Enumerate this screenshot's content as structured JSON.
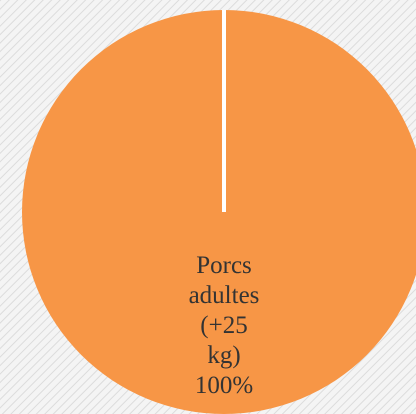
{
  "chart_data": {
    "type": "pie",
    "categories": [
      "Porcs adultes (+25 kg)"
    ],
    "values": [
      100
    ],
    "value_labels": [
      "100%"
    ],
    "colors": [
      "#f79646"
    ]
  }
}
